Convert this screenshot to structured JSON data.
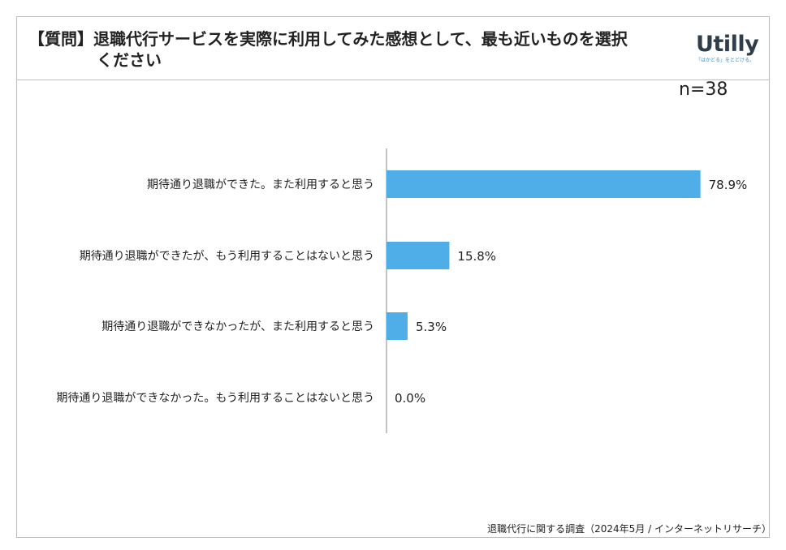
{
  "header": {
    "title_line1": "【質問】退職代行サービスを実際に利用してみた感想として、最も近いものを選択",
    "title_line2": "ください",
    "logo_word": "Utilly",
    "logo_tagline": "「はかどる」をとどける。"
  },
  "sample_size": "n=38",
  "source": "退職代行に関する調査（2024年5月 / インターネットリサーチ）",
  "colors": {
    "bar": "#4faee8",
    "axis": "#888888"
  },
  "chart_data": {
    "type": "bar",
    "orientation": "horizontal",
    "categories": [
      "期待通り退職ができた。また利用すると思う",
      "期待通り退職ができたが、もう利用することはないと思う",
      "期待通り退職ができなかったが、また利用すると思う",
      "期待通り退職ができなかった。もう利用することはないと思う"
    ],
    "values": [
      78.9,
      15.8,
      5.3,
      0.0
    ],
    "value_labels": [
      "78.9%",
      "15.8%",
      "5.3%",
      "0.0%"
    ],
    "xlim": [
      0,
      100
    ],
    "grid": false
  }
}
